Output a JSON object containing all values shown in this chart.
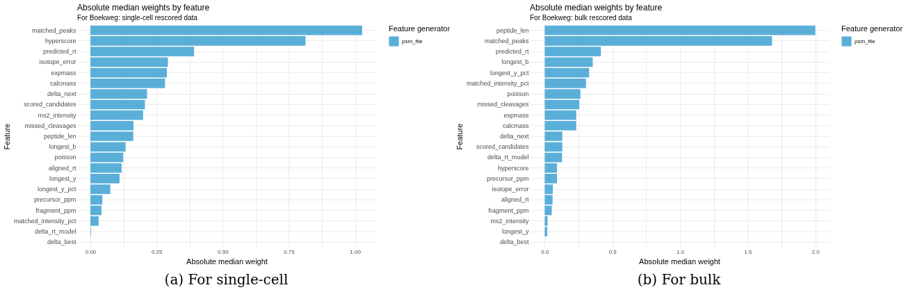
{
  "chart_data": [
    {
      "type": "bar",
      "orientation": "horizontal",
      "title": "Absolute median weights by feature",
      "subtitle": "For Boekweg: single-cell rescored data",
      "xlabel": "Absolute median weight",
      "ylabel": "Feature",
      "legend_title": "Feature generator",
      "legend": "right",
      "grid": true,
      "categories": [
        "matched_peaks",
        "hyperscore",
        "predicted_rt",
        "isotope_error",
        "expmass",
        "calcmass",
        "delta_next",
        "scored_candidates",
        "ms2_intensity",
        "missed_cleavages",
        "peptide_len",
        "longest_b",
        "poisson",
        "aligned_rt",
        "longest_y",
        "longest_y_pct",
        "precursor_ppm",
        "fragment_ppm",
        "matched_intensity_pct",
        "delta_rt_model",
        "delta_best"
      ],
      "series": [
        {
          "name": "psm_file",
          "color": "#5aafd9",
          "values": [
            1.027,
            0.813,
            0.392,
            0.293,
            0.289,
            0.282,
            0.214,
            0.206,
            0.199,
            0.163,
            0.162,
            0.133,
            0.124,
            0.118,
            0.11,
            0.075,
            0.045,
            0.042,
            0.031,
            0.002,
            0
          ]
        }
      ],
      "xlim": [
        -0.05,
        1.08
      ],
      "xticks": [
        {
          "value": 0,
          "label": "0.00"
        },
        {
          "value": 0.125,
          "label": null
        },
        {
          "value": 0.25,
          "label": "0.25"
        },
        {
          "value": 0.375,
          "label": null
        },
        {
          "value": 0.5,
          "label": "0.50"
        },
        {
          "value": 0.625,
          "label": null
        },
        {
          "value": 0.75,
          "label": "0.75"
        },
        {
          "value": 0.875,
          "label": null
        },
        {
          "value": 1,
          "label": "1.00"
        }
      ],
      "annotations": [
        "(a) For single-cell"
      ]
    },
    {
      "type": "bar",
      "orientation": "horizontal",
      "title": "Absolute median weights by feature",
      "subtitle": "For Boekweg: bulk rescored data",
      "xlabel": "Absolute median weight",
      "ylabel": "Feature",
      "legend_title": "Feature generator",
      "legend": "right",
      "grid": true,
      "categories": [
        "peptide_len",
        "matched_peaks",
        "predicted_rt",
        "longest_b",
        "longest_y_pct",
        "matched_intensity_pct",
        "poisson",
        "missed_cleavages",
        "expmass",
        "calcmass",
        "delta_next",
        "scored_candidates",
        "delta_rt_model",
        "hyperscore",
        "precursor_ppm",
        "isotope_error",
        "aligned_rt",
        "fragment_ppm",
        "ms2_intensity",
        "longest_y",
        "delta_best"
      ],
      "series": [
        {
          "name": "psm_file",
          "color": "#5aafd9",
          "values": [
            2.0,
            1.68,
            0.415,
            0.355,
            0.328,
            0.305,
            0.264,
            0.256,
            0.233,
            0.233,
            0.13,
            0.13,
            0.128,
            0.091,
            0.091,
            0.06,
            0.058,
            0.052,
            0.021,
            0.019,
            0
          ]
        }
      ],
      "xlim": [
        -0.11,
        2.1
      ],
      "xticks": [
        {
          "value": 0,
          "label": "0.0"
        },
        {
          "value": 0.25,
          "label": null
        },
        {
          "value": 0.5,
          "label": "0.5"
        },
        {
          "value": 0.75,
          "label": null
        },
        {
          "value": 1,
          "label": "1.0"
        },
        {
          "value": 1.25,
          "label": null
        },
        {
          "value": 1.5,
          "label": "1.5"
        },
        {
          "value": 1.75,
          "label": null
        },
        {
          "value": 2,
          "label": "2.0"
        }
      ],
      "annotations": [
        "(b) For bulk"
      ]
    }
  ]
}
